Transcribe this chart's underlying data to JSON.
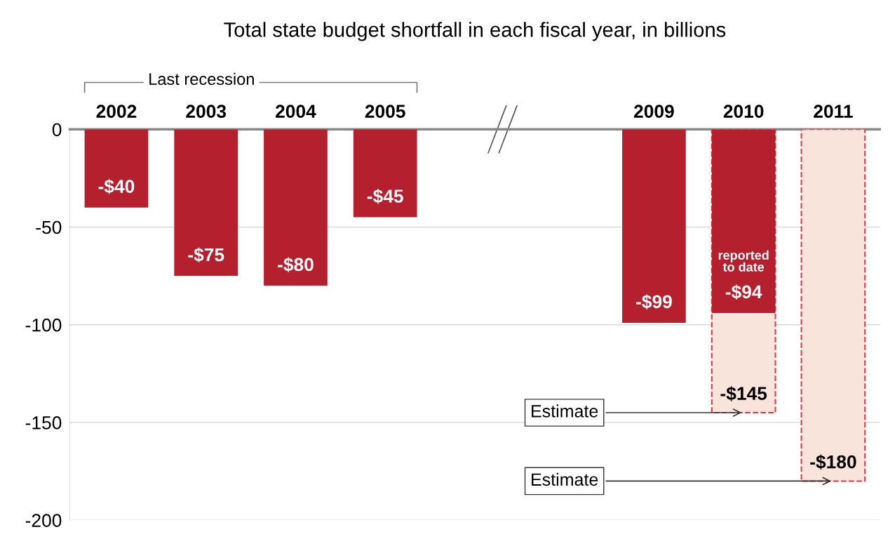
{
  "chart_data": {
    "type": "bar",
    "title": "Total state budget shortfall in each fiscal year, in billions",
    "categories": [
      "2002",
      "2003",
      "2004",
      "2005",
      null,
      null,
      "2009",
      "2010",
      "2011"
    ],
    "series": [
      {
        "color": "#b5202e",
        "values": [
          -40,
          -75,
          -80,
          -45,
          null,
          null,
          -99,
          -94,
          null
        ],
        "value_labels": [
          "-$40",
          "-$75",
          "-$80",
          "-$45",
          null,
          null,
          "-$99",
          "-$94",
          null
        ]
      },
      {
        "color": "#f9e4dc",
        "line_style": "dashed",
        "values": [
          null,
          null,
          null,
          null,
          null,
          null,
          null,
          -145,
          -180
        ],
        "value_labels": [
          null,
          null,
          null,
          null,
          null,
          null,
          null,
          "-$145",
          "-$180"
        ]
      }
    ],
    "ylim": [
      -200,
      0
    ],
    "yticks": [
      0,
      -50,
      -100,
      -150,
      -200
    ],
    "grid": "y",
    "annotations": [
      "Last recession",
      "reported to date",
      {
        "text": "Estimate",
        "x": "2010",
        "y": -145
      },
      {
        "text": "Estimate",
        "x": "2011",
        "y": -180
      }
    ]
  }
}
